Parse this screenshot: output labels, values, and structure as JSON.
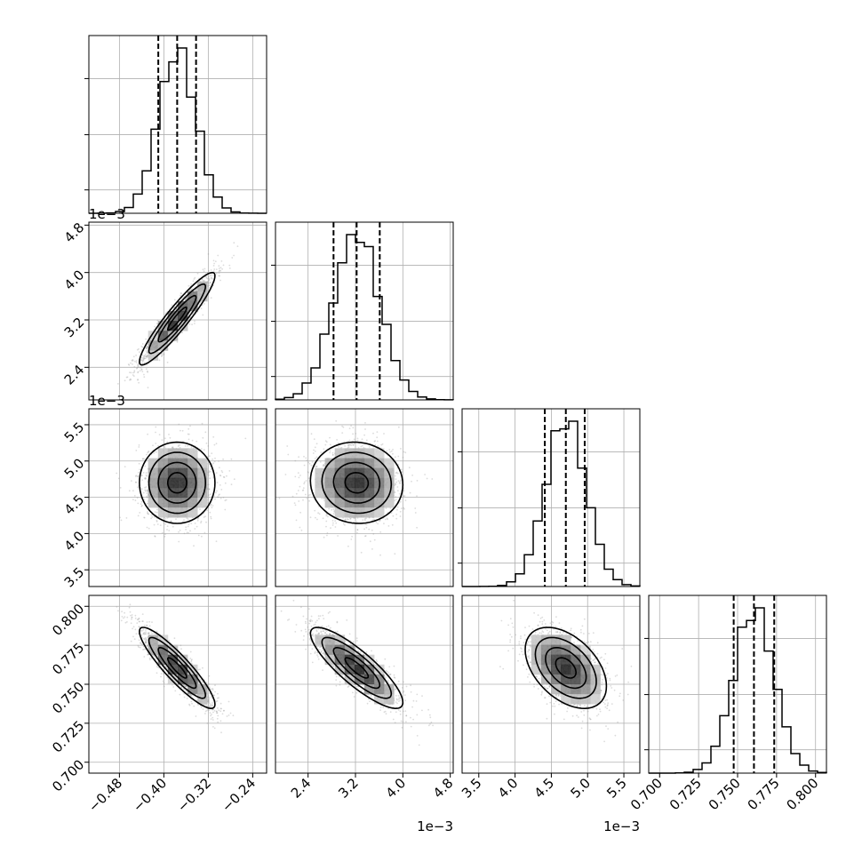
{
  "figure": {
    "type": "corner_plot",
    "background": "#ffffff",
    "grid_color": "#b0b0b0",
    "line_color": "#000000",
    "scatter_color": "#9a9a9a"
  },
  "chart_data": {
    "type": "corner",
    "grid": true,
    "parameters": [
      {
        "median": -0.376,
        "quantile_low": -0.41,
        "quantile_high": -0.342,
        "sigma": 0.034,
        "range": [
          -0.535,
          -0.215
        ],
        "ticks": [
          -0.48,
          -0.4,
          -0.32,
          -0.24
        ],
        "tick_labels": [
          "−0.48",
          "−0.40",
          "−0.32",
          "−0.24"
        ],
        "offset_text": ""
      },
      {
        "median": 0.00322,
        "quantile_low": 0.00283,
        "quantile_high": 0.00361,
        "sigma": 0.00039,
        "range": [
          0.00185,
          0.00485
        ],
        "ticks": [
          0.0024,
          0.0032,
          0.004,
          0.0048
        ],
        "tick_labels": [
          "2.4",
          "3.2",
          "4.0",
          "4.8"
        ],
        "offset_text": "1e−3"
      },
      {
        "median": 0.0047,
        "quantile_low": 0.00441,
        "quantile_high": 0.00496,
        "sigma": 0.00028,
        "range": [
          0.00327,
          0.00572
        ],
        "ticks": [
          0.0035,
          0.004,
          0.0045,
          0.005,
          0.0055
        ],
        "tick_labels": [
          "3.5",
          "4.0",
          "4.5",
          "5.0",
          "5.5"
        ],
        "offset_text": "1e−3"
      },
      {
        "median": 0.7605,
        "quantile_low": 0.7475,
        "quantile_high": 0.7735,
        "sigma": 0.013,
        "range": [
          0.693,
          0.807
        ],
        "ticks": [
          0.7,
          0.725,
          0.75,
          0.775,
          0.8
        ],
        "tick_labels": [
          "0.700",
          "0.725",
          "0.750",
          "0.775",
          "0.800"
        ],
        "offset_text": ""
      }
    ],
    "correlations": [
      {
        "x": 0,
        "y": 1,
        "rho": 0.93
      },
      {
        "x": 0,
        "y": 2,
        "rho": 0.0
      },
      {
        "x": 1,
        "y": 2,
        "rho": -0.05
      },
      {
        "x": 0,
        "y": 3,
        "rho": -0.9
      },
      {
        "x": 1,
        "y": 3,
        "rho": -0.85
      },
      {
        "x": 2,
        "y": 3,
        "rho": -0.45
      }
    ]
  }
}
